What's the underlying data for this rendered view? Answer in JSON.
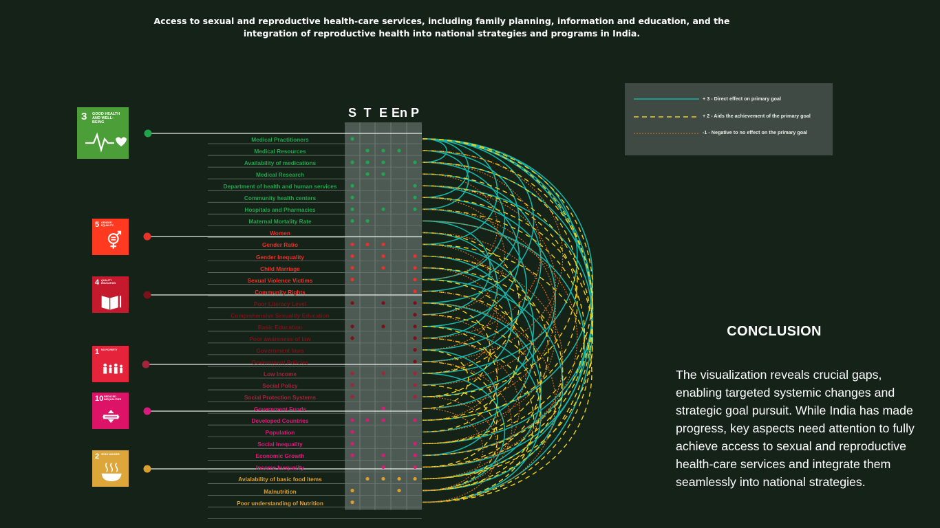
{
  "title": "Access to sexual and reproductive health-care services, including family planning, information and education, and the integration of reproductive health into national strategies and programs in India.",
  "column_headers": [
    "S",
    "T",
    "E",
    "En",
    "P"
  ],
  "sdg_goals": [
    {
      "number": "3",
      "label": "GOOD HEALTH AND WELL-BEING",
      "color": "#4c9f38",
      "marker_color": "#21a34b",
      "icon": "heartbeat-icon"
    },
    {
      "number": "5",
      "label": "GENDER EQUALITY",
      "color": "#ff3a21",
      "marker_color": "#e8322a",
      "icon": "gender-equality-icon"
    },
    {
      "number": "4",
      "label": "QUALITY EDUCATION",
      "color": "#c5192d",
      "marker_color": "#7a1218",
      "icon": "book-icon"
    },
    {
      "number": "1",
      "label": "NO POVERTY",
      "color": "#e5243b",
      "marker_color": "#a4243b",
      "icon": "family-icon"
    },
    {
      "number": "10",
      "label": "REDUCED INEQUALITIES",
      "color": "#dd1367",
      "marker_color": "#d81b7b",
      "icon": "arrows-icon"
    },
    {
      "number": "2",
      "label": "ZERO HUNGER",
      "color": "#dda63a",
      "marker_color": "#d9a030",
      "icon": "bowl-icon"
    }
  ],
  "rows": [
    {
      "label": "Medical Practitioners",
      "color": "#22a54e",
      "dots": [
        1,
        0,
        0,
        0,
        0
      ]
    },
    {
      "label": "Medical Resources",
      "color": "#22a54e",
      "dots": [
        0,
        1,
        1,
        1,
        0
      ]
    },
    {
      "label": "Availability of medications",
      "color": "#22a54e",
      "dots": [
        1,
        1,
        1,
        0,
        1
      ]
    },
    {
      "label": "Medical Research",
      "color": "#22a54e",
      "dots": [
        0,
        1,
        1,
        0,
        0
      ]
    },
    {
      "label": "Department of health and human services",
      "color": "#22a54e",
      "dots": [
        1,
        0,
        0,
        0,
        1
      ]
    },
    {
      "label": "Community health centers",
      "color": "#22a54e",
      "dots": [
        1,
        0,
        0,
        0,
        1
      ]
    },
    {
      "label": "Hospitals and Pharmacies",
      "color": "#22a54e",
      "dots": [
        1,
        0,
        1,
        0,
        1
      ]
    },
    {
      "label": "Maternal Mortality Rate",
      "color": "#22a54e",
      "dots": [
        1,
        1,
        0,
        0,
        0
      ]
    },
    {
      "label": "Women",
      "color": "#e8322a",
      "dots": [
        0,
        0,
        0,
        0,
        0
      ]
    },
    {
      "label": "Gender Ratio",
      "color": "#e8322a",
      "dots": [
        1,
        1,
        1,
        0,
        0
      ]
    },
    {
      "label": "Gender Inequality",
      "color": "#e8322a",
      "dots": [
        1,
        0,
        1,
        0,
        1
      ]
    },
    {
      "label": "Child Marriage",
      "color": "#e8322a",
      "dots": [
        1,
        0,
        1,
        0,
        1
      ]
    },
    {
      "label": "Sexual Violence Victims",
      "color": "#e8322a",
      "dots": [
        1,
        0,
        0,
        0,
        1
      ]
    },
    {
      "label": "Community Rights",
      "color": "#e8322a",
      "dots": [
        0,
        0,
        0,
        0,
        1
      ]
    },
    {
      "label": "Poor Literacy Level",
      "color": "#7a1218",
      "dots": [
        1,
        0,
        1,
        0,
        1
      ]
    },
    {
      "label": "Comprehensive Sexuality Education",
      "color": "#7a1218",
      "dots": [
        0,
        0,
        0,
        0,
        1
      ]
    },
    {
      "label": "Basic Education",
      "color": "#7a1218",
      "dots": [
        1,
        0,
        1,
        0,
        1
      ]
    },
    {
      "label": "Poor awareness of law",
      "color": "#7a1218",
      "dots": [
        1,
        0,
        0,
        0,
        1
      ]
    },
    {
      "label": "Government laws",
      "color": "#7a1218",
      "dots": [
        0,
        0,
        0,
        0,
        1
      ]
    },
    {
      "label": "Government Policies",
      "color": "#7a1218",
      "dots": [
        0,
        0,
        0,
        0,
        1
      ]
    },
    {
      "label": "Low Income",
      "color": "#a4243b",
      "dots": [
        1,
        0,
        1,
        0,
        1
      ]
    },
    {
      "label": "Social Policy",
      "color": "#a4243b",
      "dots": [
        1,
        0,
        0,
        0,
        1
      ]
    },
    {
      "label": "Social Protection Systems",
      "color": "#a4243b",
      "dots": [
        1,
        0,
        0,
        0,
        1
      ]
    },
    {
      "label": "Government Funds",
      "color": "#d81b7b",
      "dots": [
        0,
        0,
        1,
        0,
        0
      ]
    },
    {
      "label": "Developed Countries",
      "color": "#d81b7b",
      "dots": [
        1,
        1,
        1,
        0,
        1
      ]
    },
    {
      "label": "Population",
      "color": "#d81b7b",
      "dots": [
        1,
        0,
        0,
        0,
        0
      ]
    },
    {
      "label": "Social Inequality",
      "color": "#d81b7b",
      "dots": [
        1,
        0,
        0,
        0,
        1
      ]
    },
    {
      "label": "Economic Growth",
      "color": "#d81b7b",
      "dots": [
        1,
        0,
        1,
        0,
        1
      ]
    },
    {
      "label": "Income Inequality",
      "color": "#d81b7b",
      "dots": [
        0,
        0,
        1,
        0,
        1
      ]
    },
    {
      "label": "Avialability of basic food items",
      "color": "#d9a030",
      "dots": [
        0,
        1,
        1,
        1,
        1
      ]
    },
    {
      "label": "Malnutrition",
      "color": "#d9a030",
      "dots": [
        1,
        0,
        0,
        1,
        0
      ]
    },
    {
      "label": "Poor understanding of Nutrition",
      "color": "#d9a030",
      "dots": [
        1,
        0,
        0,
        0,
        0
      ]
    }
  ],
  "legend": [
    {
      "label": "+ 3 - Direct effect on primary goal",
      "color": "#17b3a7",
      "style": "solid"
    },
    {
      "label": "+ 2 - Aids the achievement of the primary goal",
      "color": "#f2d21b",
      "style": "dashed"
    },
    {
      "label": "-1 - Negative to no effect on the primary goal",
      "color": "#e0792a",
      "style": "dotted"
    }
  ],
  "conclusion": {
    "heading": "CONCLUSION",
    "text": "The visualization reveals crucial gaps, enabling targeted systemic changes and strategic goal pursuit. While India has made progress, key aspects need attention to fully achieve access to sexual and reproductive health-care services and integrate them seamlessly into national strategies."
  }
}
